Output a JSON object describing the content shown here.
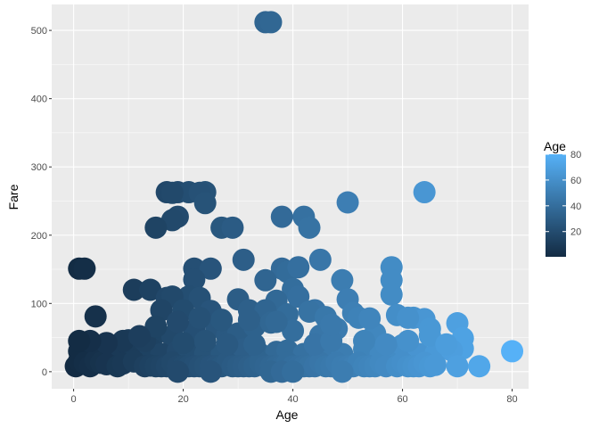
{
  "chart_data": {
    "type": "scatter",
    "title": "",
    "xlabel": "Age",
    "ylabel": "Fare",
    "xlim": [
      -4,
      83
    ],
    "ylim": [
      -25,
      538
    ],
    "x_ticks": [
      0,
      20,
      40,
      60,
      80
    ],
    "y_ticks": [
      0,
      100,
      200,
      300,
      400,
      500
    ],
    "grid": true,
    "legend": {
      "title": "Age",
      "position": "right",
      "ticks": [
        20,
        40,
        60,
        80
      ],
      "range": [
        0.42,
        80
      ]
    },
    "colors": {
      "low": "#132B43",
      "high": "#56B1F7",
      "panel": "#EBEBEB",
      "grid": "#FFFFFF"
    },
    "points": [
      [
        35,
        512
      ],
      [
        36,
        512
      ],
      [
        17,
        263
      ],
      [
        19,
        263
      ],
      [
        21,
        263
      ],
      [
        24,
        263
      ],
      [
        64,
        263
      ],
      [
        18,
        262
      ],
      [
        23,
        262
      ],
      [
        50,
        248
      ],
      [
        24,
        247
      ],
      [
        38,
        227
      ],
      [
        42,
        227
      ],
      [
        19,
        227
      ],
      [
        18,
        222
      ],
      [
        43,
        211
      ],
      [
        27,
        211
      ],
      [
        29,
        211
      ],
      [
        15,
        211
      ],
      [
        1,
        151
      ],
      [
        2,
        151
      ],
      [
        22,
        151
      ],
      [
        25,
        151
      ],
      [
        58,
        153
      ],
      [
        38,
        151
      ],
      [
        39,
        146
      ],
      [
        41,
        153
      ],
      [
        45,
        164
      ],
      [
        31,
        164
      ],
      [
        11,
        120
      ],
      [
        14,
        120
      ],
      [
        22,
        135
      ],
      [
        35,
        134
      ],
      [
        21,
        110
      ],
      [
        49,
        134
      ],
      [
        58,
        134
      ],
      [
        40,
        121
      ],
      [
        17,
        108
      ],
      [
        18,
        110
      ],
      [
        23,
        108
      ],
      [
        30,
        106
      ],
      [
        37,
        104
      ],
      [
        50,
        106
      ],
      [
        62,
        79
      ],
      [
        58,
        113
      ],
      [
        4,
        81
      ],
      [
        16,
        90
      ],
      [
        20,
        90
      ],
      [
        25,
        89
      ],
      [
        32,
        90
      ],
      [
        35,
        90
      ],
      [
        39,
        84
      ],
      [
        44,
        90
      ],
      [
        51,
        86
      ],
      [
        59,
        83
      ],
      [
        64,
        77
      ],
      [
        70,
        71
      ],
      [
        2,
        39
      ],
      [
        5,
        31
      ],
      [
        8,
        34
      ],
      [
        10,
        46
      ],
      [
        12,
        34
      ],
      [
        15,
        56
      ],
      [
        18,
        52
      ],
      [
        22,
        61
      ],
      [
        26,
        66
      ],
      [
        28,
        53
      ],
      [
        30,
        56
      ],
      [
        33,
        66
      ],
      [
        36,
        72
      ],
      [
        40,
        60
      ],
      [
        45,
        53
      ],
      [
        48,
        63
      ],
      [
        52,
        79
      ],
      [
        55,
        56
      ],
      [
        61,
        79
      ],
      [
        65,
        63
      ],
      [
        71,
        49
      ],
      [
        71,
        34
      ],
      [
        1,
        30
      ],
      [
        3,
        21
      ],
      [
        4,
        27
      ],
      [
        7,
        26
      ],
      [
        9,
        26
      ],
      [
        11,
        21
      ],
      [
        14,
        34
      ],
      [
        16,
        26
      ],
      [
        19,
        30
      ],
      [
        21,
        31
      ],
      [
        24,
        26
      ],
      [
        27,
        26
      ],
      [
        29,
        27
      ],
      [
        31,
        33
      ],
      [
        34,
        26
      ],
      [
        37,
        29
      ],
      [
        39,
        31
      ],
      [
        42,
        26
      ],
      [
        45,
        26
      ],
      [
        47,
        37
      ],
      [
        49,
        26
      ],
      [
        53,
        33
      ],
      [
        56,
        26
      ],
      [
        58,
        30
      ],
      [
        60,
        39
      ],
      [
        63,
        26
      ],
      [
        66,
        26
      ],
      [
        69,
        31
      ],
      [
        80,
        30
      ],
      [
        0.4,
        8
      ],
      [
        1,
        16
      ],
      [
        2,
        13
      ],
      [
        3,
        8
      ],
      [
        4,
        16
      ],
      [
        5,
        13
      ],
      [
        6,
        11
      ],
      [
        8,
        8
      ],
      [
        9,
        12
      ],
      [
        11,
        15
      ],
      [
        13,
        8
      ],
      [
        14,
        9
      ],
      [
        15,
        8
      ],
      [
        16,
        8
      ],
      [
        17,
        8
      ],
      [
        18,
        13
      ],
      [
        19,
        8
      ],
      [
        20,
        8
      ],
      [
        21,
        8
      ],
      [
        22,
        8
      ],
      [
        23,
        8
      ],
      [
        24,
        8
      ],
      [
        25,
        8
      ],
      [
        26,
        8
      ],
      [
        27,
        8
      ],
      [
        28,
        13
      ],
      [
        29,
        8
      ],
      [
        30,
        8
      ],
      [
        31,
        8
      ],
      [
        32,
        8
      ],
      [
        33,
        8
      ],
      [
        34,
        13
      ],
      [
        35,
        8
      ],
      [
        36,
        8
      ],
      [
        37,
        8
      ],
      [
        38,
        8
      ],
      [
        39,
        13
      ],
      [
        40,
        8
      ],
      [
        41,
        8
      ],
      [
        42,
        8
      ],
      [
        43,
        8
      ],
      [
        44,
        8
      ],
      [
        45,
        13
      ],
      [
        46,
        8
      ],
      [
        47,
        8
      ],
      [
        48,
        13
      ],
      [
        49,
        8
      ],
      [
        50,
        8
      ],
      [
        51,
        8
      ],
      [
        52,
        13
      ],
      [
        53,
        8
      ],
      [
        54,
        8
      ],
      [
        55,
        8
      ],
      [
        56,
        13
      ],
      [
        57,
        8
      ],
      [
        59,
        8
      ],
      [
        60,
        13
      ],
      [
        61,
        8
      ],
      [
        62,
        8
      ],
      [
        63,
        8
      ],
      [
        64,
        13
      ],
      [
        65,
        8
      ],
      [
        66,
        10
      ],
      [
        70,
        8
      ],
      [
        74,
        8
      ],
      [
        19,
        0
      ],
      [
        25,
        0
      ],
      [
        36,
        0
      ],
      [
        38,
        0
      ],
      [
        40,
        0
      ],
      [
        49,
        0
      ],
      [
        44,
        40
      ],
      [
        47,
        45
      ],
      [
        53,
        45
      ],
      [
        57,
        40
      ],
      [
        61,
        45
      ],
      [
        33,
        40
      ],
      [
        28,
        40
      ],
      [
        24,
        45
      ],
      [
        20,
        42
      ],
      [
        13,
        45
      ],
      [
        9,
        45
      ],
      [
        6,
        42
      ],
      [
        3,
        45
      ],
      [
        1,
        45
      ],
      [
        41,
        110
      ],
      [
        43,
        88
      ],
      [
        46,
        80
      ],
      [
        54,
        78
      ],
      [
        47,
        69
      ],
      [
        37,
        73
      ],
      [
        32,
        76
      ],
      [
        27,
        76
      ],
      [
        23,
        79
      ],
      [
        19,
        73
      ],
      [
        15,
        66
      ],
      [
        12,
        52
      ],
      [
        65,
        53
      ],
      [
        68,
        40
      ]
    ]
  }
}
